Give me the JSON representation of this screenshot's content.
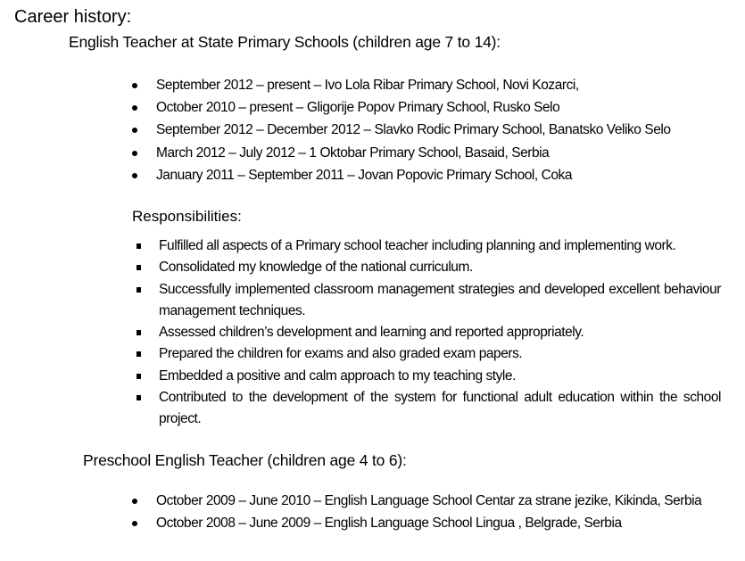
{
  "title": "Career history:",
  "primary": {
    "heading": "English Teacher at State Primary Schools (children age 7 to 14):",
    "jobs": [
      "September 2012 – present –  Ivo Lola Ribar Primary School, Novi Kozarci,",
      "October 2010 – present – Gligorije Popov Primary School, Rusko Selo",
      "September 2012 – December 2012 –  Slavko Rodic Primary School, Banatsko Veliko Selo",
      "March 2012 – July 2012 –  1 Oktobar Primary School, Basaid, Serbia",
      "January 2011 – September 2011 – Jovan Popovic Primary School, Coka"
    ],
    "responsibilities_heading": "Responsibilities:",
    "responsibilities": [
      "Fulfilled all aspects of a Primary school teacher including planning and implementing work.",
      "Consolidated my knowledge of the national curriculum.",
      "Successfully implemented classroom management strategies and developed excellent behaviour management techniques.",
      "Assessed children’s development and learning and reported appropriately.",
      "Prepared the children for exams and also graded exam papers.",
      "Embedded a positive and calm approach to my teaching style.",
      "Contributed to the development of the system for functional adult education within the school project."
    ]
  },
  "preschool": {
    "heading": "Preschool English Teacher (children age 4 to 6):",
    "jobs": [
      "October 2009 – June 2010 – English Language School Centar za strane jezike, Kikinda, Serbia",
      "October  2008 – June 2009 – English Language School Lingua , Belgrade, Serbia"
    ]
  }
}
